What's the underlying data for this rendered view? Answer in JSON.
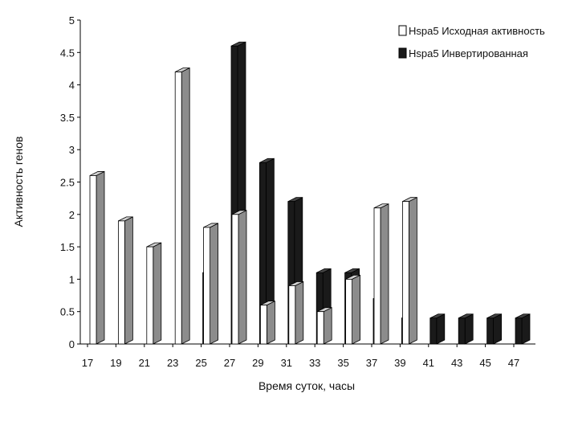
{
  "chart_data": {
    "type": "bar",
    "style": "3d-columns",
    "title": "",
    "xlabel": "Время суток, часы",
    "ylabel": "Активность генов",
    "ylim": [
      0,
      5
    ],
    "yticks": [
      "0",
      "0.5",
      "1",
      "1.5",
      "2",
      "2.5",
      "3",
      "3.5",
      "4",
      "4.5",
      "5"
    ],
    "xtick_labels": [
      "17",
      "19",
      "21",
      "23",
      "25",
      "27",
      "29",
      "31",
      "33",
      "35",
      "37",
      "39",
      "41",
      "43",
      "45",
      "47"
    ],
    "x": [
      17,
      19,
      21,
      23,
      25,
      27,
      29,
      31,
      33,
      35,
      37,
      39,
      41,
      43,
      45,
      47
    ],
    "legend_position": "top-right",
    "colors": {
      "series1": "#ffffff",
      "series2": "#1a1a1a",
      "gray": "#8c8c8c"
    },
    "series": [
      {
        "name": "Hspa5 Исходная активность",
        "x": [
          17,
          19,
          21,
          23,
          25,
          27,
          29,
          31,
          33,
          35,
          37,
          39
        ],
        "values": [
          2.6,
          1.9,
          1.5,
          4.2,
          1.8,
          2.0,
          0.6,
          0.9,
          0.5,
          1.0,
          2.1,
          2.2
        ]
      },
      {
        "name": "Hspa5 Инвертированная",
        "x": [
          25,
          27,
          29,
          31,
          33,
          35,
          37,
          39,
          41,
          43,
          45,
          47
        ],
        "values": [
          1.1,
          4.6,
          2.8,
          2.2,
          1.1,
          1.1,
          0.7,
          0.4,
          0.4,
          0.4,
          0.4,
          0.4
        ]
      }
    ]
  }
}
